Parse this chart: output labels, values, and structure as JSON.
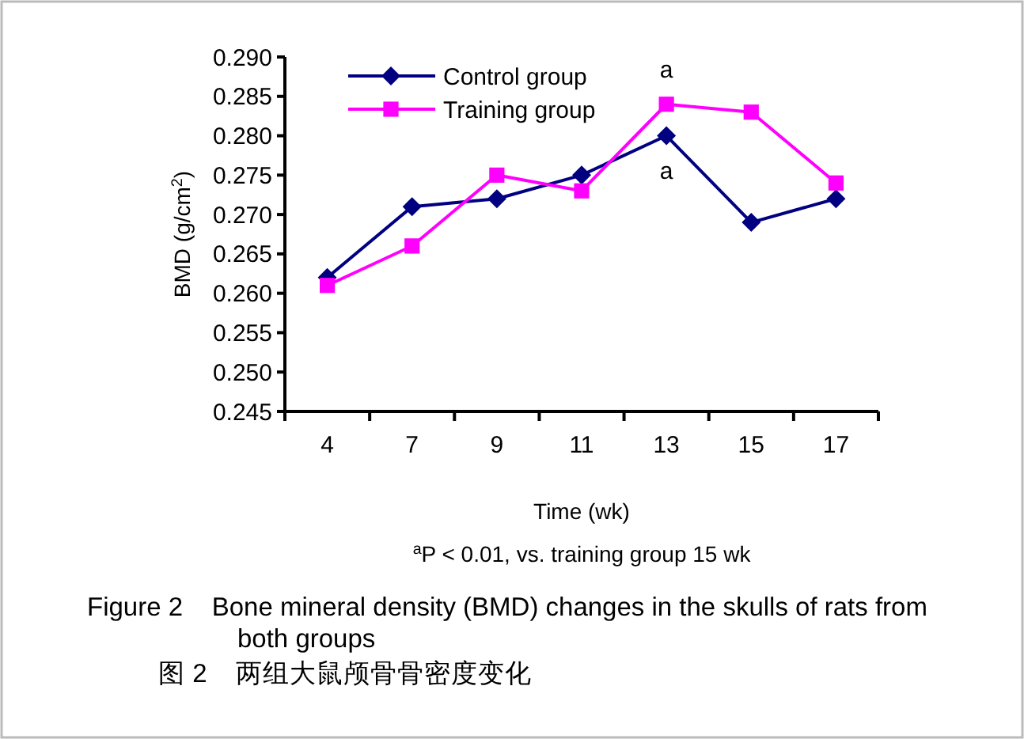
{
  "chart_data": {
    "type": "line",
    "xlabel": "Time (wk)",
    "ylabel": "BMD (g/cm$^{2}$)",
    "categories": [
      "4",
      "7",
      "9",
      "11",
      "13",
      "15",
      "17"
    ],
    "series": [
      {
        "name": "Control group",
        "color": "#000080",
        "marker": "diamond",
        "values": [
          0.262,
          0.271,
          0.272,
          0.275,
          0.28,
          0.269,
          0.272
        ]
      },
      {
        "name": "Training group",
        "color": "#ff00ff",
        "marker": "square",
        "values": [
          0.261,
          0.266,
          0.275,
          0.273,
          0.284,
          0.283,
          0.274
        ]
      }
    ],
    "ylim": [
      0.245,
      0.29
    ],
    "yticks": [
      {
        "value": 0.245,
        "label": "0.245"
      },
      {
        "value": 0.25,
        "label": "0.250"
      },
      {
        "value": 0.255,
        "label": "0.255"
      },
      {
        "value": 0.26,
        "label": "0.260"
      },
      {
        "value": 0.265,
        "label": "0.265"
      },
      {
        "value": 0.27,
        "label": "0.270"
      },
      {
        "value": 0.275,
        "label": "0.275"
      },
      {
        "value": 0.28,
        "label": "0.280"
      },
      {
        "value": 0.285,
        "label": "0.285"
      },
      {
        "value": 0.29,
        "label": "0.290"
      }
    ],
    "grid": false,
    "legend": "top left",
    "line_style": "solid",
    "annotations": [
      {
        "text": "a",
        "x": "13",
        "y": 0.284
      },
      {
        "text": "a",
        "x": "13",
        "y": 0.28
      },
      "$^{a}$P < 0.01, vs. training group 15 wk",
      "Figure 2    Bone mineral density (BMD) changes in the skulls of rats from both groups",
      "图 2    两组大鼠颅骨骨密度变化"
    ]
  }
}
